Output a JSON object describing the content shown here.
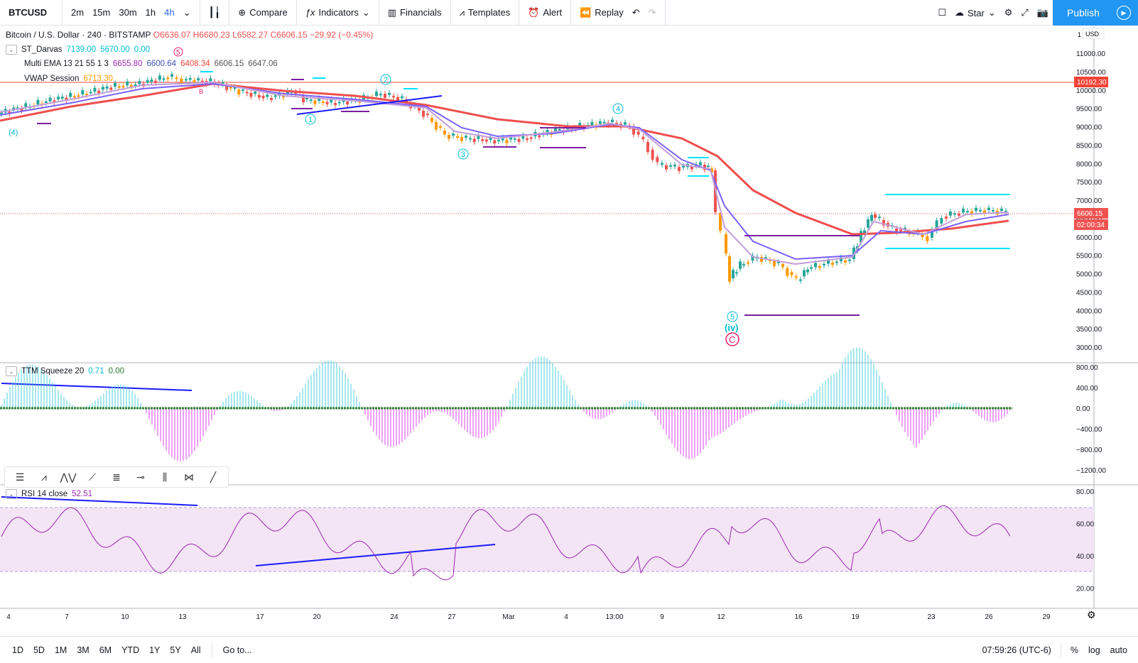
{
  "toolbar": {
    "symbol": "BTCUSD",
    "intervals": [
      "2m",
      "15m",
      "30m",
      "1h",
      "4h"
    ],
    "active_interval": "4h",
    "compare": "Compare",
    "indicators": "Indicators",
    "financials": "Financials",
    "templates": "Templates",
    "alert": "Alert",
    "replay": "Replay",
    "layout_name": "Star",
    "publish": "Publish"
  },
  "legend": {
    "title": "Bitcoin / U.S. Dollar · 240 · BITSTAMP",
    "o": "O6636.07",
    "h": "H6680.23",
    "l": "L6582.27",
    "c": "C6606.15",
    "chg": "−29.92 (−0.45%)",
    "darvas_name": "ST_Darvas",
    "darvas_v1": "7139.00",
    "darvas_v2": "5670.00",
    "darvas_v3": "0.00",
    "ema_name": "Multi EMA 13 21 55 1 3",
    "ema_v1": "6655.80",
    "ema_v2": "6600.64",
    "ema_v3": "6408.34",
    "ema_v4": "6606.15",
    "ema_v5": "6647.06",
    "vwap_name": "VWAP Session",
    "vwap_v": "6713.30"
  },
  "price_axis": {
    "currency": "USD",
    "ticks": [
      "11000.00",
      "10500.00",
      "10000.00",
      "9500.00",
      "9000.00",
      "8500.00",
      "8000.00",
      "7500.00",
      "7000.00",
      "6500.00",
      "6000.00",
      "5500.00",
      "5000.00",
      "4500.00",
      "4000.00",
      "3500.00",
      "3000.00"
    ],
    "top_tick": "1",
    "line_label": "10192.30",
    "last_price": "6606.15",
    "countdown": "02:00:34"
  },
  "ttm": {
    "name": "TTM Squeeze 20",
    "v1": "0.71",
    "v2": "0.00",
    "ticks": [
      "800.00",
      "400.00",
      "0.00",
      "−400.00",
      "−800.00",
      "−1200.00"
    ]
  },
  "rsi": {
    "name": "RSI 14 close",
    "value": "52.51",
    "ticks": [
      "80.00",
      "60.00",
      "40.00",
      "20.00"
    ]
  },
  "time_axis": [
    "4",
    "7",
    "10",
    "13",
    "17",
    "20",
    "24",
    "27",
    "Mar",
    "4",
    "13:00",
    "9",
    "12",
    "16",
    "19",
    "23",
    "26",
    "29"
  ],
  "waves": {
    "w4": "(4)",
    "w1": "1",
    "w2": "2",
    "w3": "3",
    "w4b": "4",
    "w5": "5",
    "wiv": "(iv)",
    "wC": "C",
    "w5top": "5",
    "wB": "B"
  },
  "bottom": {
    "ranges": [
      "1D",
      "5D",
      "1M",
      "3M",
      "6M",
      "YTD",
      "1Y",
      "5Y",
      "All"
    ],
    "goto": "Go to...",
    "clock": "07:59:26 (UTC-6)",
    "pct": "%",
    "log": "log",
    "auto": "auto"
  },
  "colors": {
    "up": "#26a69a",
    "down": "#ef5350",
    "ema_fast": "#7b61ff",
    "ema_slow": "#f04e4e",
    "darvas": "#00e5ff",
    "darvas_purple": "#7b1fa2",
    "trend": "#1a1aff",
    "rsi_band": "#f3e5f5",
    "rsi_line": "#9c27b0"
  }
}
